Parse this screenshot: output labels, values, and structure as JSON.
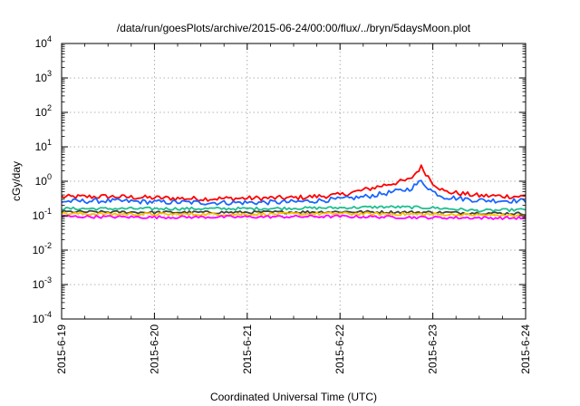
{
  "chart_data": {
    "type": "line",
    "title": "/data/run/goesPlots/archive/2015-06-24/00:00/flux/../bryn/5daysMoon.plot",
    "xlabel": "Coordinated Universal Time (UTC)",
    "ylabel": "cGy/day",
    "yscale": "log",
    "ylim": [
      0.0001,
      10000
    ],
    "xlim": [
      "2015-6-19",
      "2015-6-24"
    ],
    "x_tick_labels": [
      "2015-6-19",
      "2015-6-20",
      "2015-6-21",
      "2015-6-22",
      "2015-6-23",
      "2015-6-24"
    ],
    "y_ticks": [
      {
        "base": "10",
        "exp": "-4",
        "value": 0.0001
      },
      {
        "base": "10",
        "exp": "-3",
        "value": 0.001
      },
      {
        "base": "10",
        "exp": "-2",
        "value": 0.01
      },
      {
        "base": "10",
        "exp": "-1",
        "value": 0.1
      },
      {
        "base": "10",
        "exp": "0",
        "value": 1
      },
      {
        "base": "10",
        "exp": "1",
        "value": 10
      },
      {
        "base": "10",
        "exp": "2",
        "value": 100
      },
      {
        "base": "10",
        "exp": "3",
        "value": 1000
      },
      {
        "base": "10",
        "exp": "4",
        "value": 10000
      }
    ],
    "grid": true,
    "series": [
      {
        "color": "#ff0000",
        "values": [
          [
            "2015-06-19T00:00",
            0.35
          ],
          [
            "2015-06-19T12:00",
            0.36
          ],
          [
            "2015-06-20T00:00",
            0.33
          ],
          [
            "2015-06-20T12:00",
            0.31
          ],
          [
            "2015-06-21T00:00",
            0.32
          ],
          [
            "2015-06-21T12:00",
            0.33
          ],
          [
            "2015-06-22T00:00",
            0.4
          ],
          [
            "2015-06-22T06:00",
            0.55
          ],
          [
            "2015-06-22T12:00",
            0.8
          ],
          [
            "2015-06-22T18:00",
            1.1
          ],
          [
            "2015-06-22T21:00",
            2.6
          ],
          [
            "2015-06-23T00:00",
            0.9
          ],
          [
            "2015-06-23T03:00",
            0.5
          ],
          [
            "2015-06-23T12:00",
            0.38
          ],
          [
            "2015-06-24T00:00",
            0.36
          ]
        ]
      },
      {
        "color": "#1a66ff",
        "values": [
          [
            "2015-06-19T00:00",
            0.26
          ],
          [
            "2015-06-19T12:00",
            0.27
          ],
          [
            "2015-06-20T00:00",
            0.25
          ],
          [
            "2015-06-20T12:00",
            0.24
          ],
          [
            "2015-06-21T00:00",
            0.24
          ],
          [
            "2015-06-21T12:00",
            0.25
          ],
          [
            "2015-06-22T00:00",
            0.3
          ],
          [
            "2015-06-22T06:00",
            0.35
          ],
          [
            "2015-06-22T12:00",
            0.45
          ],
          [
            "2015-06-22T18:00",
            0.6
          ],
          [
            "2015-06-22T21:00",
            1.0
          ],
          [
            "2015-06-23T00:00",
            0.5
          ],
          [
            "2015-06-23T03:00",
            0.35
          ],
          [
            "2015-06-23T12:00",
            0.28
          ],
          [
            "2015-06-24T00:00",
            0.27
          ]
        ]
      },
      {
        "color": "#1fbf8f",
        "values": [
          [
            "2015-06-19T00:00",
            0.16
          ],
          [
            "2015-06-20T00:00",
            0.16
          ],
          [
            "2015-06-21T00:00",
            0.16
          ],
          [
            "2015-06-22T00:00",
            0.17
          ],
          [
            "2015-06-22T12:00",
            0.18
          ],
          [
            "2015-06-23T00:00",
            0.17
          ],
          [
            "2015-06-23T12:00",
            0.14
          ],
          [
            "2015-06-24T00:00",
            0.15
          ]
        ]
      },
      {
        "color": "#404040",
        "values": [
          [
            "2015-06-19T00:00",
            0.13
          ],
          [
            "2015-06-20T00:00",
            0.125
          ],
          [
            "2015-06-21T00:00",
            0.125
          ],
          [
            "2015-06-22T00:00",
            0.13
          ],
          [
            "2015-06-23T00:00",
            0.125
          ],
          [
            "2015-06-24T00:00",
            0.115
          ]
        ]
      },
      {
        "color": "#ffc000",
        "values": [
          [
            "2015-06-19T00:00",
            0.115
          ],
          [
            "2015-06-20T00:00",
            0.11
          ],
          [
            "2015-06-21T00:00",
            0.11
          ],
          [
            "2015-06-22T00:00",
            0.115
          ],
          [
            "2015-06-23T00:00",
            0.11
          ],
          [
            "2015-06-24T00:00",
            0.1
          ]
        ]
      },
      {
        "color": "#ff00ff",
        "values": [
          [
            "2015-06-19T00:00",
            0.095
          ],
          [
            "2015-06-20T00:00",
            0.09
          ],
          [
            "2015-06-21T00:00",
            0.092
          ],
          [
            "2015-06-22T00:00",
            0.095
          ],
          [
            "2015-06-23T00:00",
            0.088
          ],
          [
            "2015-06-24T00:00",
            0.085
          ]
        ]
      }
    ]
  }
}
